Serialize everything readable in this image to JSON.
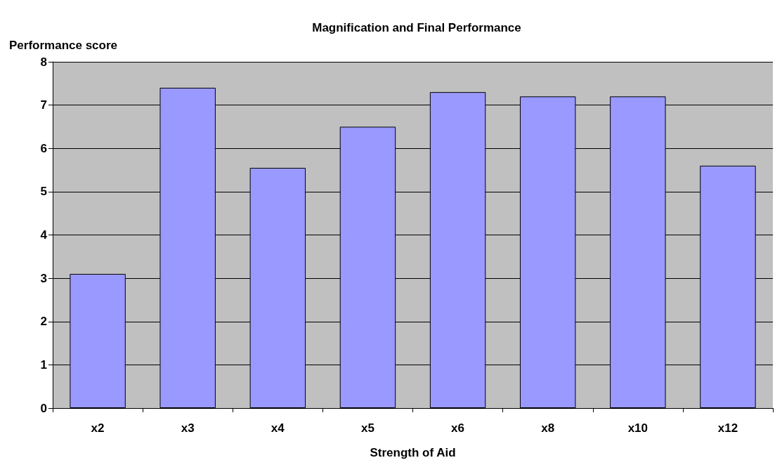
{
  "chart_data": {
    "type": "bar",
    "title": "Magnification and Final Performance",
    "xlabel": "Strength of Aid",
    "ylabel": "Performance score",
    "categories": [
      "x2",
      "x3",
      "x4",
      "x5",
      "x6",
      "x8",
      "x10",
      "x12"
    ],
    "values": [
      3.1,
      7.4,
      5.55,
      6.5,
      7.3,
      7.2,
      7.2,
      5.6
    ],
    "color": "#9999ff",
    "ylim": [
      0,
      8
    ],
    "yticks": [
      0,
      1,
      2,
      3,
      4,
      5,
      6,
      7,
      8
    ],
    "grid": "y"
  }
}
